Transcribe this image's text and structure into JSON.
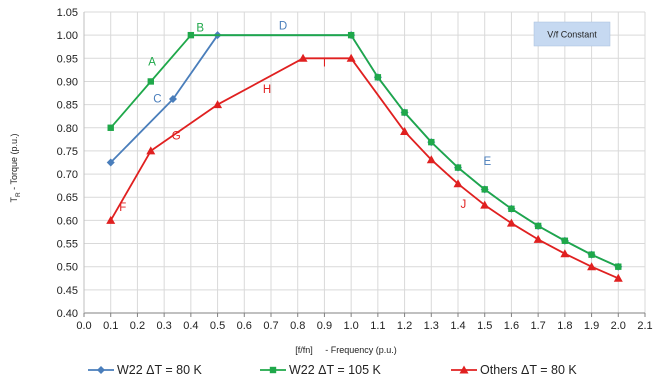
{
  "chart_data": {
    "type": "line",
    "xlabel": "[f/fn]     - Frequency (p.u.)",
    "ylabel": "T_R - Torque (p.u.)",
    "xlim": [
      0.0,
      2.1
    ],
    "ylim": [
      0.4,
      1.05
    ],
    "x_ticks": [
      "0.0",
      "0.1",
      "0.2",
      "0.3",
      "0.4",
      "0.5",
      "0.6",
      "0.7",
      "0.8",
      "0.9",
      "1.0",
      "1.1",
      "1.2",
      "1.3",
      "1.4",
      "1.5",
      "1.6",
      "1.7",
      "1.8",
      "1.9",
      "2.0",
      "2.1"
    ],
    "y_ticks": [
      "0.40",
      "0.45",
      "0.50",
      "0.55",
      "0.60",
      "0.65",
      "0.70",
      "0.75",
      "0.80",
      "0.85",
      "0.90",
      "0.95",
      "1.00",
      "1.05"
    ],
    "grid": true,
    "legend_position": "bottom",
    "annotation_box": "V/f Constant",
    "series": [
      {
        "name": "W22 ΔT = 80 K",
        "color": "#4a7ebb",
        "marker": "diamond",
        "points": [
          [
            0.1,
            0.725
          ],
          [
            0.333,
            0.862
          ],
          [
            0.5,
            1.0
          ],
          [
            1.0,
            1.0
          ],
          [
            1.1,
            0.909
          ],
          [
            1.2,
            0.833
          ],
          [
            1.3,
            0.769
          ],
          [
            1.4,
            0.714
          ],
          [
            1.5,
            0.667
          ],
          [
            1.6,
            0.625
          ],
          [
            1.7,
            0.588
          ],
          [
            1.8,
            0.556
          ],
          [
            1.9,
            0.526
          ],
          [
            2.0,
            0.5
          ]
        ]
      },
      {
        "name": "W22 ΔT = 105 K",
        "color": "#1fa84a",
        "marker": "square",
        "points": [
          [
            0.1,
            0.8
          ],
          [
            0.25,
            0.9
          ],
          [
            0.4,
            1.0
          ],
          [
            1.0,
            1.0
          ],
          [
            1.1,
            0.909
          ],
          [
            1.2,
            0.833
          ],
          [
            1.3,
            0.769
          ],
          [
            1.4,
            0.714
          ],
          [
            1.5,
            0.667
          ],
          [
            1.6,
            0.625
          ],
          [
            1.7,
            0.588
          ],
          [
            1.8,
            0.556
          ],
          [
            1.9,
            0.526
          ],
          [
            2.0,
            0.5
          ]
        ]
      },
      {
        "name": "Others ΔT = 80 K",
        "color": "#e02020",
        "marker": "triangle",
        "points": [
          [
            0.1,
            0.6
          ],
          [
            0.25,
            0.75
          ],
          [
            0.5,
            0.85
          ],
          [
            0.82,
            0.95
          ],
          [
            1.0,
            0.95
          ],
          [
            1.2,
            0.792
          ],
          [
            1.3,
            0.731
          ],
          [
            1.4,
            0.679
          ],
          [
            1.5,
            0.633
          ],
          [
            1.6,
            0.594
          ],
          [
            1.7,
            0.559
          ],
          [
            1.8,
            0.528
          ],
          [
            1.9,
            0.5
          ],
          [
            2.0,
            0.475
          ]
        ]
      }
    ],
    "annotations": [
      {
        "text": "A",
        "x": 0.255,
        "y": 0.935,
        "color": "#1fa84a"
      },
      {
        "text": "B",
        "x": 0.435,
        "y": 1.008,
        "color": "#1fa84a"
      },
      {
        "text": "C",
        "x": 0.275,
        "y": 0.855,
        "color": "#4a7ebb"
      },
      {
        "text": "D",
        "x": 0.745,
        "y": 1.012,
        "color": "#4a7ebb"
      },
      {
        "text": "E",
        "x": 1.51,
        "y": 0.72,
        "color": "#4a7ebb"
      },
      {
        "text": "F",
        "x": 0.145,
        "y": 0.62,
        "color": "#e02020"
      },
      {
        "text": "G",
        "x": 0.345,
        "y": 0.775,
        "color": "#e02020"
      },
      {
        "text": "H",
        "x": 0.685,
        "y": 0.875,
        "color": "#e02020"
      },
      {
        "text": "I",
        "x": 0.9,
        "y": 0.932,
        "color": "#e02020"
      },
      {
        "text": "J",
        "x": 1.42,
        "y": 0.627,
        "color": "#e02020"
      }
    ]
  }
}
